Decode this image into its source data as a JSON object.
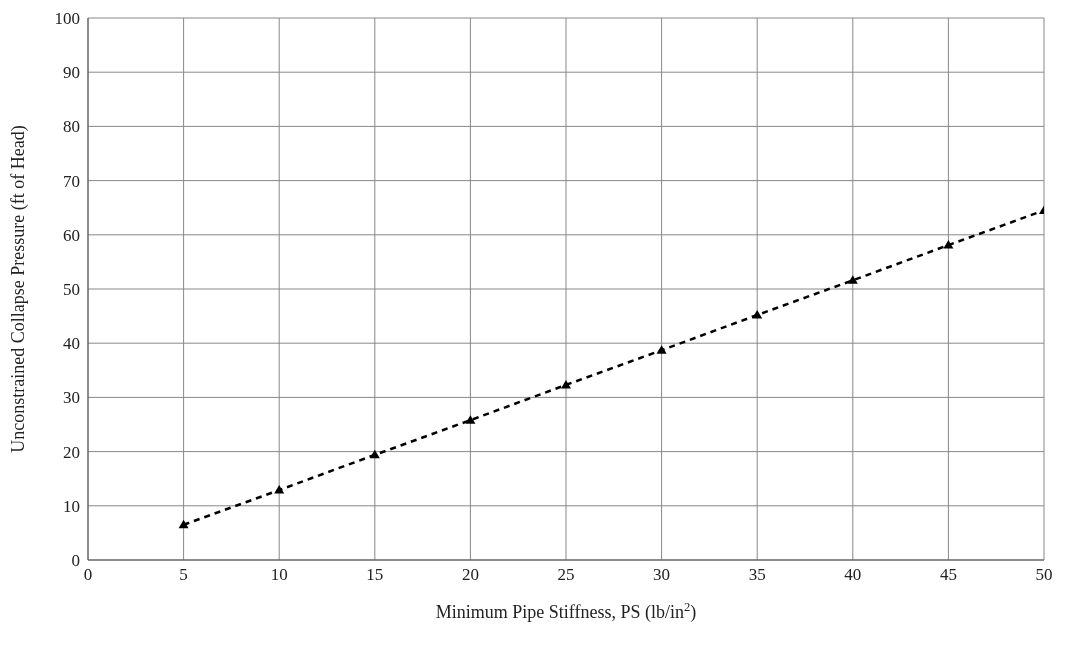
{
  "chart_data": {
    "type": "line",
    "xlabel": "Minimum Pipe Stiffness, PS (lb/in$^{2}$)",
    "ylabel": "Unconstrained Collapse Pressure (ft of Head)",
    "x": [
      5,
      10,
      15,
      20,
      25,
      30,
      35,
      40,
      45,
      50
    ],
    "series": [
      {
        "color": "#000000",
        "values": [
          6.5,
          12.9,
          19.4,
          25.8,
          32.3,
          38.7,
          45.2,
          51.6,
          58.1,
          64.5
        ]
      }
    ],
    "xlim": [
      0,
      50
    ],
    "xticks": [
      0,
      5,
      10,
      15,
      20,
      25,
      30,
      35,
      40,
      45,
      50
    ],
    "ylim": [
      0,
      100
    ],
    "yticks": [
      0,
      10,
      20,
      30,
      40,
      50,
      60,
      70,
      80,
      90,
      100
    ],
    "grid": true,
    "legend": false,
    "marker": "triangle",
    "line_style": "dashed"
  }
}
